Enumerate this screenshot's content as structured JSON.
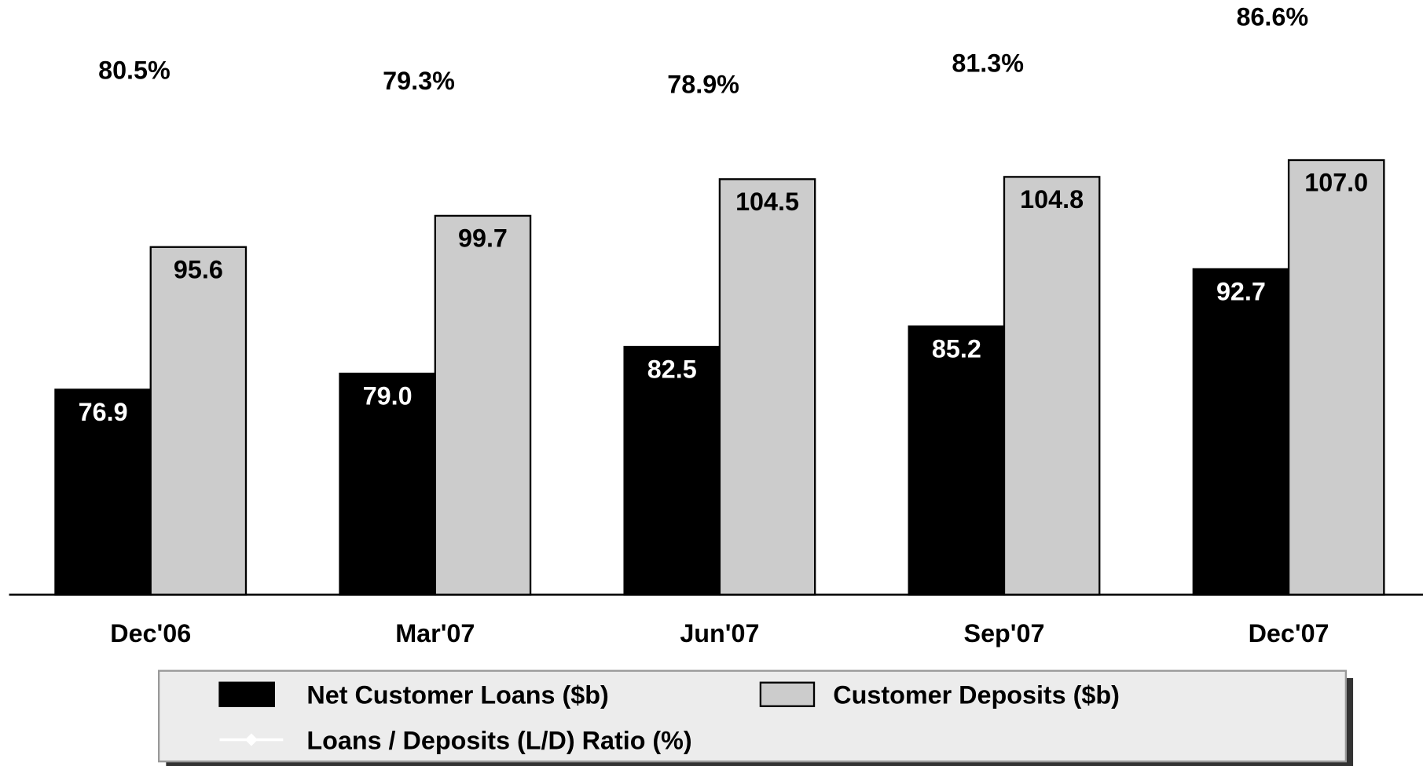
{
  "chart_data": {
    "type": "bar",
    "categories": [
      "Dec'06",
      "Mar'07",
      "Jun'07",
      "Sep'07",
      "Dec'07"
    ],
    "series": [
      {
        "name": "Net Customer Loans ($b)",
        "color": "#000000",
        "label_color": "#ffffff",
        "values": [
          76.9,
          79.0,
          82.5,
          85.2,
          92.7
        ],
        "value_labels": [
          "76.9",
          "79.0",
          "82.5",
          "85.2",
          "92.7"
        ]
      },
      {
        "name": "Customer Deposits ($b)",
        "color": "#cccccc",
        "label_color": "#000000",
        "values": [
          95.6,
          99.7,
          104.5,
          104.8,
          107.0
        ],
        "value_labels": [
          "95.6",
          "99.7",
          "104.5",
          "104.8",
          "107.0"
        ]
      },
      {
        "name": "Loans / Deposits (L/D) Ratio (%)",
        "type": "line",
        "axis": "y2",
        "color": "#ffffff",
        "values": [
          80.5,
          79.3,
          78.9,
          81.3,
          86.6
        ],
        "value_labels": [
          "80.5%",
          "79.3%",
          "78.9%",
          "81.3%",
          "86.6%"
        ]
      }
    ],
    "ylim": [
      50,
      128
    ],
    "y2lim": [
      22,
      90
    ]
  }
}
